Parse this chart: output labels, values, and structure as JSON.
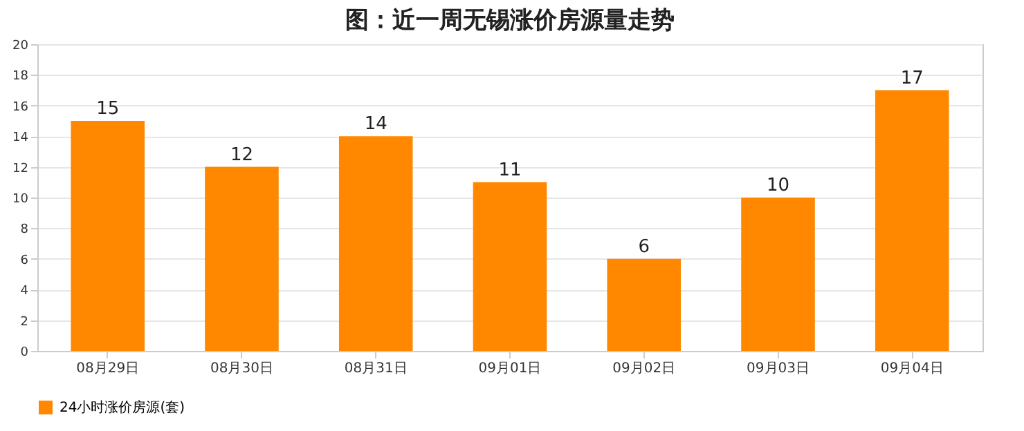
{
  "chart_data": {
    "type": "bar",
    "title": "图：近一周无锡涨价房源量走势",
    "categories": [
      "08月29日",
      "08月30日",
      "08月31日",
      "09月01日",
      "09月02日",
      "09月03日",
      "09月04日"
    ],
    "series": [
      {
        "name": "24小时涨价房源(套)",
        "color": "#ff8800",
        "values": [
          15,
          12,
          14,
          11,
          6,
          10,
          17
        ]
      }
    ],
    "ylim": [
      0,
      20
    ],
    "yticks": [
      0,
      2,
      4,
      6,
      8,
      10,
      12,
      14,
      16,
      18,
      20
    ],
    "grid": "y",
    "legend": "bottom",
    "data_labels": true
  }
}
